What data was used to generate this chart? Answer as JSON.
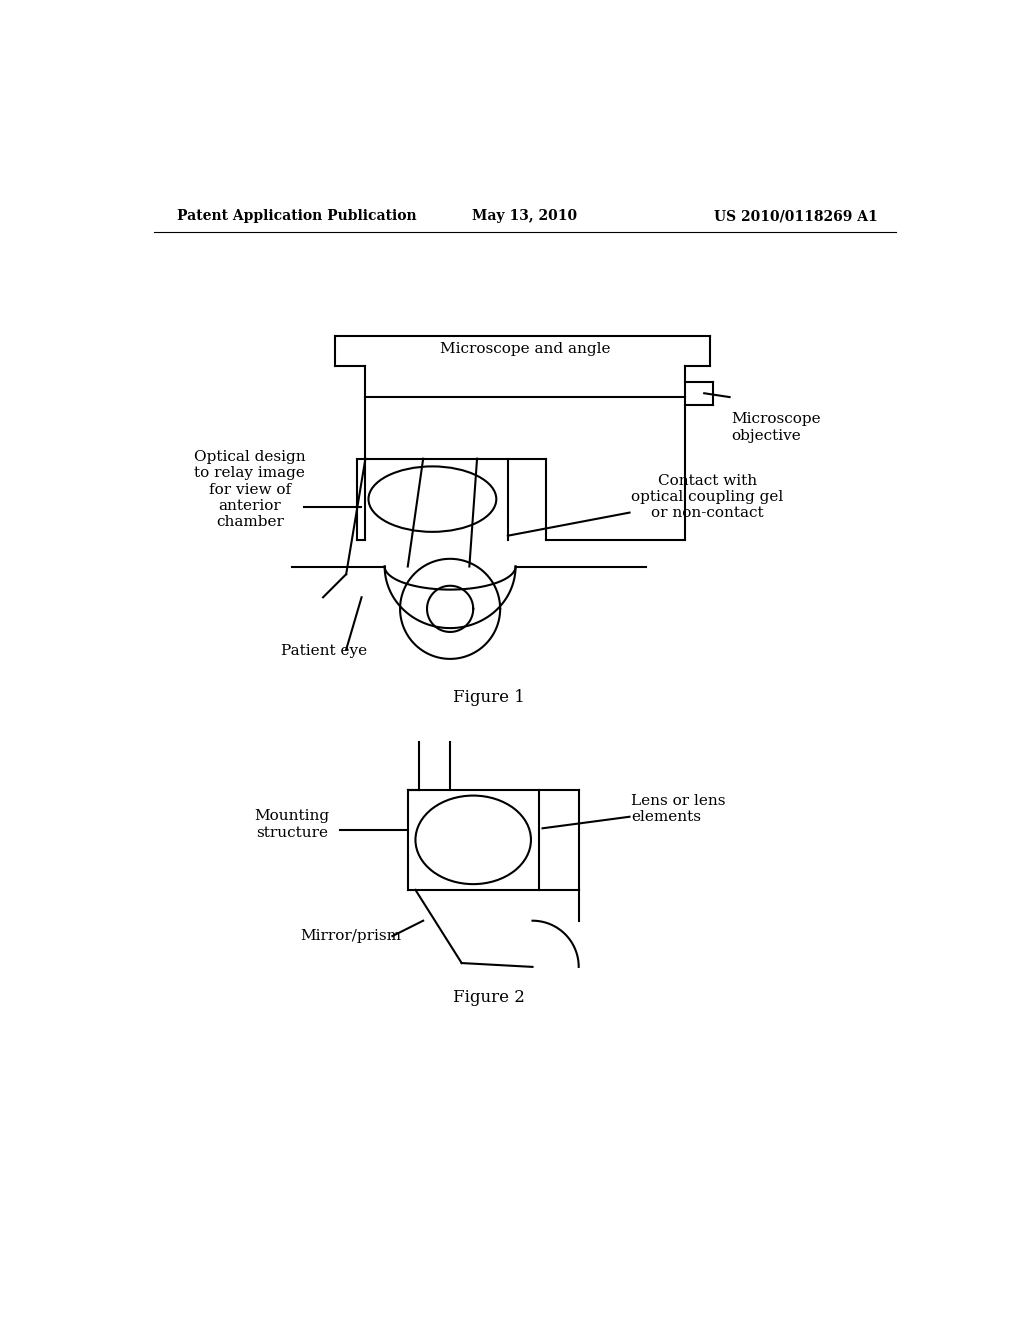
{
  "header_left": "Patent Application Publication",
  "header_center": "May 13, 2010",
  "header_right": "US 2010/0118269 A1",
  "fig1_caption": "Figure 1",
  "fig2_caption": "Figure 2",
  "label_microscope_angle": "Microscope and angle",
  "label_microscope_obj": "Microscope\nobjective",
  "label_optical_design": "Optical design\nto relay image\nfor view of\nanterior\nchamber",
  "label_contact": "Contact with\noptical coupling gel\nor non-contact",
  "label_patient_eye": "Patient eye",
  "label_mounting": "Mounting\nstructure",
  "label_lens": "Lens or lens\nelements",
  "label_mirror": "Mirror/prism",
  "bg_color": "#ffffff",
  "line_color": "#000000",
  "text_color": "#000000"
}
